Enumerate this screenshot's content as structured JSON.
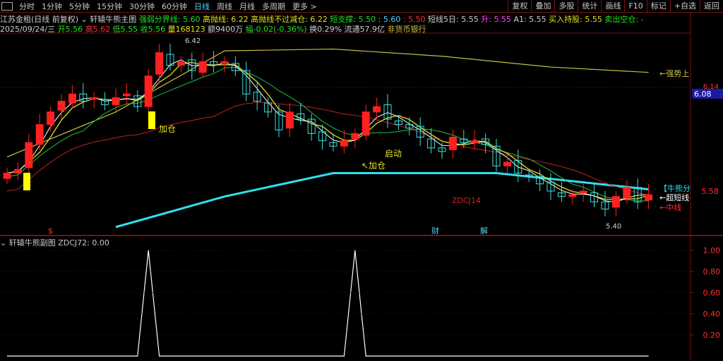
{
  "toolbar": {
    "periods": [
      "分时",
      "1分钟",
      "5分钟",
      "15分钟",
      "30分钟",
      "60分钟",
      "日线",
      "周线",
      "月线",
      "多周期",
      "更多 >"
    ],
    "active": "日线",
    "right_buttons": [
      "复权",
      "叠加",
      "多股",
      "统计",
      "画线",
      "F10",
      "标记",
      "+自选",
      "返回"
    ]
  },
  "header": {
    "stock": "江苏金租(日线 前复权)",
    "indicator": "轩辕牛熊主图",
    "fields": [
      {
        "label": "强弱分界线: ",
        "value": "5.60",
        "color": "g"
      },
      {
        "label": "高抛线: ",
        "value": "6.22",
        "color": "y"
      },
      {
        "label": "高抛线不过减仓: ",
        "value": "6.22",
        "color": "y"
      },
      {
        "label": "短支撑: ",
        "value": "5.50",
        "color": "g"
      },
      {
        "label": " : ",
        "value": "5.60",
        "color": "c"
      },
      {
        "label": " : ",
        "value": "5.50",
        "color": "r"
      },
      {
        "label": "短线5日: ",
        "value": "5.55",
        "color": "w"
      },
      {
        "label": "升: ",
        "value": "5.55",
        "color": "m"
      },
      {
        "label": "A1: ",
        "value": "5.55",
        "color": "w"
      },
      {
        "label": "买入持股: ",
        "value": "5.55",
        "color": "y"
      },
      {
        "label": "卖出空仓: ",
        "value": "-",
        "color": "g"
      }
    ]
  },
  "quote": {
    "date": "2025/09/24/三",
    "open": "开5.56",
    "high": "高5.62",
    "low": "低5.55",
    "close": "收5.56",
    "volume": "量168123",
    "amount": "额9400万",
    "change": "幅-0.02(-0.36%)",
    "turnover": "换0.29%",
    "float": "流通57.9亿",
    "sector": "非货币银行"
  },
  "sub": {
    "title": "轩辕牛熊副图",
    "value": "ZDCJ72: 0.00"
  },
  "colors": {
    "up": "#ff2020",
    "down": "#40e0e0",
    "ma5": "#ffffff",
    "ma10": "#e0e020",
    "ma20": "#20c040",
    "ma30": "#c02020",
    "strong": "#c8c040",
    "bull": "#30e0f0"
  },
  "chart_data": [
    {
      "type": "candlestick",
      "close": [
        5.68,
        5.7,
        5.85,
        5.95,
        6.02,
        6.08,
        6.12,
        6.08,
        6.1,
        6.06,
        6.1,
        6.12,
        6.05,
        6.22,
        6.35,
        6.28,
        6.3,
        6.25,
        6.3,
        6.28,
        6.3,
        6.25,
        6.12,
        6.08,
        6.02,
        5.92,
        6.02,
        5.98,
        5.9,
        5.86,
        5.83,
        5.86,
        5.9,
        6.02,
        6.05,
        5.98,
        5.95,
        5.93,
        5.88,
        5.82,
        5.8,
        5.88,
        5.85,
        5.86,
        5.84,
        5.72,
        5.74,
        5.68,
        5.66,
        5.62,
        5.58,
        5.55,
        5.56,
        5.58,
        5.52,
        5.48,
        5.55,
        5.6,
        5.52,
        5.56
      ],
      "strong_line": [
        [
          0,
          5.77
        ],
        [
          10,
          6.02
        ],
        [
          20,
          6.36
        ],
        [
          30,
          6.37
        ],
        [
          40,
          6.33
        ],
        [
          50,
          6.27
        ],
        [
          59,
          6.24
        ]
      ],
      "bull_bear_line": [
        [
          10,
          5.38
        ],
        [
          20,
          5.55
        ],
        [
          30,
          5.68
        ],
        [
          45,
          5.68
        ],
        [
          59,
          5.59
        ]
      ],
      "price_ticks": [
        "6.14",
        "6.08",
        "5.58"
      ],
      "markers": {
        "high": "6.42",
        "low": "5.40"
      },
      "annotations": {
        "add1": "加仓",
        "add2": "↖加仓",
        "start": "启动",
        "zdcj": "ZDCJ14",
        "fin": "财",
        "jie": "解",
        "dollar": "$"
      },
      "right_labels": [
        "←强势上",
        "【牛熊分",
        "←超短线",
        "←中线"
      ]
    },
    {
      "type": "line",
      "name": "ZDCJ72",
      "values_nonzero": {
        "13": 1,
        "32": 1
      },
      "yticks": [
        "1.00",
        "0.80",
        "0.60",
        "0.40",
        "0.20"
      ],
      "ylim": [
        0,
        1.05
      ]
    }
  ]
}
